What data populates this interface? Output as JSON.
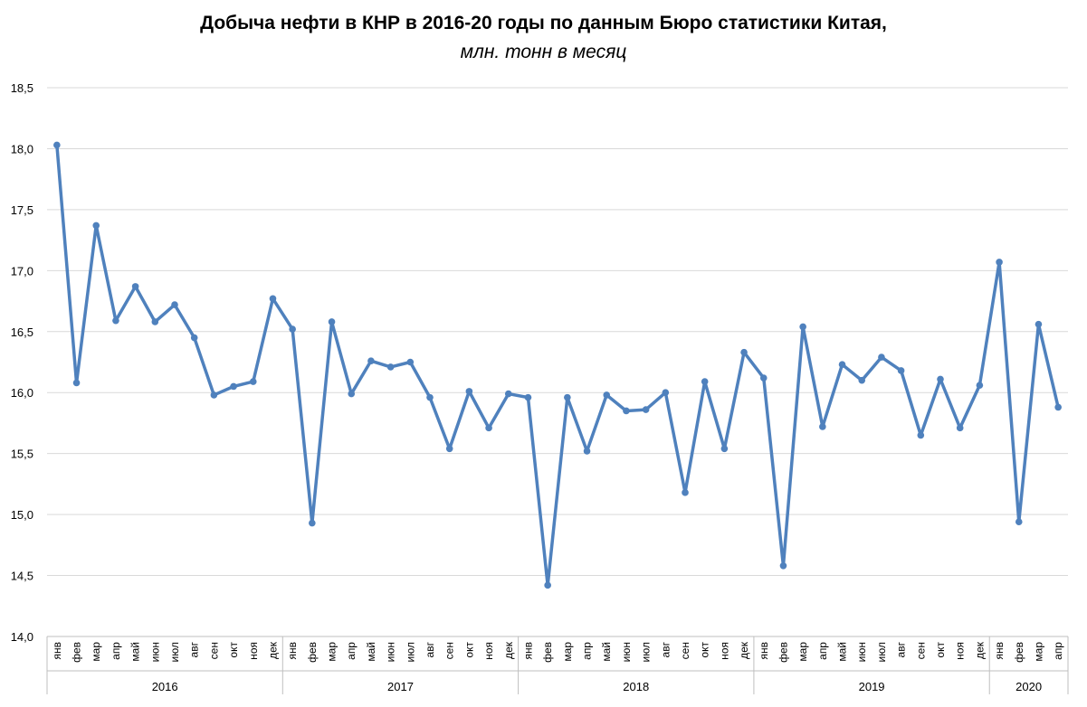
{
  "chart_data": {
    "type": "line",
    "title": "Добыча нефти в КНР в 2016-20 годы по данным Бюро статистики Китая,",
    "subtitle": "млн. тонн в месяц",
    "ylim": [
      14.0,
      18.5
    ],
    "yticks": [
      "14,0",
      "14,5",
      "15,0",
      "15,5",
      "16,0",
      "16,5",
      "17,0",
      "17,5",
      "18,0",
      "18,5"
    ],
    "grid": true,
    "color": "#4F81BD",
    "years": [
      {
        "label": "2016",
        "months": 12
      },
      {
        "label": "2017",
        "months": 12
      },
      {
        "label": "2018",
        "months": 12
      },
      {
        "label": "2019",
        "months": 12
      },
      {
        "label": "2020",
        "months": 4
      }
    ],
    "categories": [
      "янв",
      "фев",
      "мар",
      "апр",
      "май",
      "июн",
      "июл",
      "авг",
      "сен",
      "окт",
      "ноя",
      "дек",
      "янв",
      "фев",
      "мар",
      "апр",
      "май",
      "июн",
      "июл",
      "авг",
      "сен",
      "окт",
      "ноя",
      "дек",
      "янв",
      "фев",
      "мар",
      "апр",
      "май",
      "июн",
      "июл",
      "авг",
      "сен",
      "окт",
      "ноя",
      "дек",
      "янв",
      "фев",
      "мар",
      "апр",
      "май",
      "июн",
      "июл",
      "авг",
      "сен",
      "окт",
      "ноя",
      "дек",
      "янв",
      "фев",
      "мар",
      "апр"
    ],
    "values": [
      18.03,
      16.08,
      17.37,
      16.59,
      16.87,
      16.58,
      16.72,
      16.45,
      15.98,
      16.05,
      16.09,
      16.77,
      16.52,
      14.93,
      16.58,
      15.99,
      16.26,
      16.21,
      16.25,
      15.96,
      15.54,
      16.01,
      15.71,
      15.99,
      15.96,
      14.42,
      15.96,
      15.52,
      15.98,
      15.85,
      15.86,
      16.0,
      15.18,
      16.09,
      15.54,
      16.33,
      16.12,
      14.58,
      16.54,
      15.72,
      16.23,
      16.1,
      16.29,
      16.18,
      15.65,
      16.11,
      15.71,
      16.06,
      17.07,
      14.94,
      16.56,
      15.88
    ]
  }
}
